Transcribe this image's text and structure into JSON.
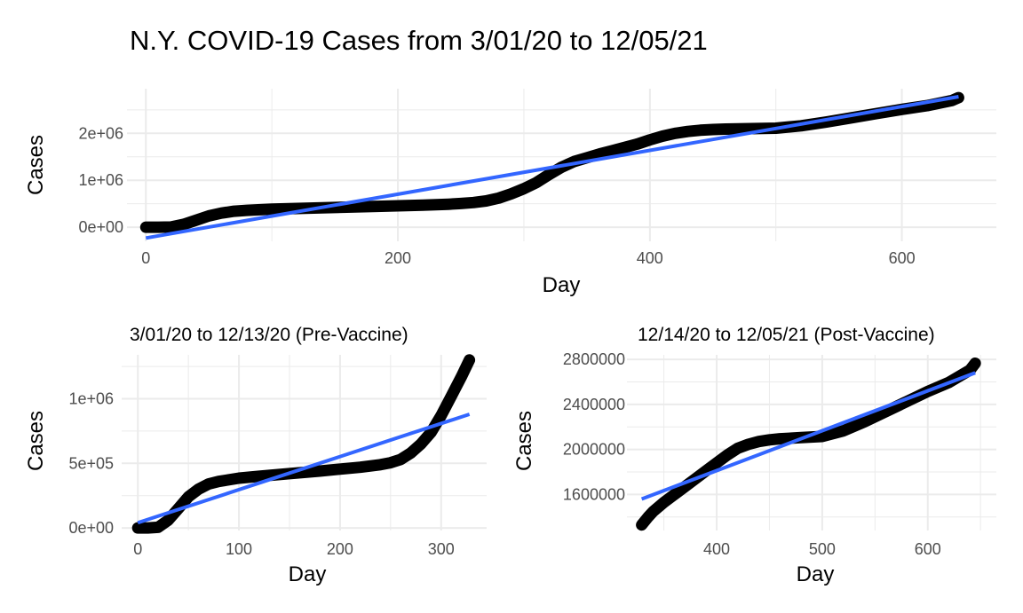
{
  "chart_data": [
    {
      "id": "all",
      "type": "line",
      "title": "N.Y. COVID-19 Cases from 3/01/20 to 12/05/21",
      "xlabel": "Day",
      "ylabel": "Cases",
      "xlim": [
        -15,
        675
      ],
      "ylim": [
        -300000,
        2950000
      ],
      "x_ticks": [
        0,
        200,
        400,
        600
      ],
      "x_tick_labels": [
        "0",
        "200",
        "400",
        "600"
      ],
      "y_ticks": [
        0,
        1000000,
        2000000
      ],
      "y_tick_labels": [
        "0e+00",
        "1e+06",
        "2e+06"
      ],
      "grid": true,
      "series": [
        {
          "type": "line",
          "x": [
            0,
            10,
            20,
            30,
            40,
            50,
            60,
            70,
            80,
            100,
            120,
            150,
            180,
            200,
            220,
            240,
            250,
            260,
            270,
            280,
            290,
            300,
            310,
            320,
            330,
            340,
            350,
            360,
            370,
            380,
            390,
            400,
            410,
            420,
            430,
            440,
            450,
            460,
            480,
            500,
            520,
            540,
            560,
            580,
            600,
            620,
            640,
            645
          ],
          "y": [
            0,
            0,
            5000,
            60000,
            150000,
            240000,
            300000,
            340000,
            360000,
            385000,
            400000,
            420000,
            440000,
            455000,
            470000,
            490000,
            505000,
            525000,
            560000,
            620000,
            710000,
            820000,
            950000,
            1120000,
            1280000,
            1400000,
            1480000,
            1560000,
            1630000,
            1700000,
            1770000,
            1860000,
            1940000,
            2000000,
            2040000,
            2065000,
            2080000,
            2090000,
            2100000,
            2110000,
            2160000,
            2240000,
            2330000,
            2420000,
            2510000,
            2590000,
            2700000,
            2760000
          ]
        },
        {
          "type": "trend",
          "x": [
            0,
            645
          ],
          "y": [
            -230000,
            2780000
          ]
        }
      ]
    },
    {
      "id": "pre",
      "type": "line",
      "title": "3/01/20 to 12/13/20 (Pre-Vaccine)",
      "xlabel": "Day",
      "ylabel": "Cases",
      "xlim": [
        -16,
        345
      ],
      "ylim": [
        -20000,
        1340000
      ],
      "x_ticks": [
        0,
        100,
        200,
        300
      ],
      "x_tick_labels": [
        "0",
        "100",
        "200",
        "300"
      ],
      "y_ticks": [
        0,
        500000,
        1000000
      ],
      "y_tick_labels": [
        "0e+00",
        "5e+05",
        "1e+06"
      ],
      "grid": true,
      "series": [
        {
          "type": "line",
          "x": [
            0,
            10,
            20,
            30,
            40,
            50,
            60,
            70,
            80,
            100,
            120,
            150,
            180,
            200,
            220,
            240,
            250,
            260,
            270,
            280,
            290,
            300,
            310,
            320,
            328
          ],
          "y": [
            0,
            0,
            5000,
            60000,
            150000,
            240000,
            300000,
            340000,
            360000,
            385000,
            400000,
            420000,
            440000,
            455000,
            470000,
            490000,
            505000,
            530000,
            580000,
            650000,
            740000,
            870000,
            1020000,
            1170000,
            1300000
          ]
        },
        {
          "type": "trend",
          "x": [
            0,
            328
          ],
          "y": [
            40000,
            880000
          ]
        }
      ]
    },
    {
      "id": "post",
      "type": "line",
      "title": "12/14/20 to 12/05/21 (Post-Vaccine)",
      "xlabel": "Day",
      "ylabel": "Cases",
      "xlim": [
        315,
        665
      ],
      "ylim": [
        1280000,
        2840000
      ],
      "x_ticks": [
        400,
        500,
        600
      ],
      "x_tick_labels": [
        "400",
        "500",
        "600"
      ],
      "y_ticks": [
        1600000,
        2000000,
        2400000,
        2800000
      ],
      "y_tick_labels": [
        "1600000",
        "2000000",
        "2400000",
        "2800000"
      ],
      "grid": true,
      "series": [
        {
          "type": "line",
          "x": [
            329,
            335,
            340,
            350,
            360,
            370,
            380,
            390,
            400,
            410,
            420,
            430,
            440,
            450,
            460,
            480,
            500,
            520,
            540,
            560,
            580,
            600,
            620,
            640,
            645
          ],
          "y": [
            1330000,
            1400000,
            1450000,
            1530000,
            1600000,
            1670000,
            1740000,
            1810000,
            1880000,
            1950000,
            2010000,
            2045000,
            2070000,
            2085000,
            2095000,
            2105000,
            2115000,
            2165000,
            2245000,
            2335000,
            2425000,
            2515000,
            2595000,
            2705000,
            2765000
          ]
        },
        {
          "type": "trend",
          "x": [
            329,
            645
          ],
          "y": [
            1560000,
            2680000
          ]
        }
      ]
    }
  ]
}
